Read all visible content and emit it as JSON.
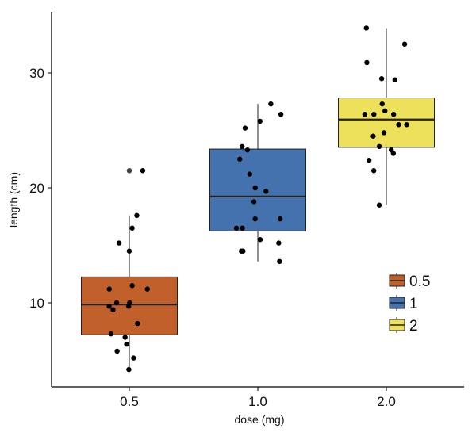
{
  "chart_data": {
    "type": "boxplot",
    "title": "",
    "xlabel": "dose (mg)",
    "ylabel": "length (cm)",
    "ylim": [
      2.7,
      35.7
    ],
    "yticks": [
      10,
      20,
      30
    ],
    "categories": [
      "0.5",
      "1.0",
      "2.0"
    ],
    "grid": false,
    "legend": {
      "position": "right",
      "entries": [
        "0.5",
        "1",
        "2"
      ]
    },
    "colors": [
      "#C2602B",
      "#4472AE",
      "#EDE05A"
    ],
    "boxes": [
      {
        "category": "0.5",
        "min": 4.2,
        "q1": 7.225,
        "median": 9.85,
        "q3": 12.25,
        "max": 17.6,
        "outliers": [
          21.5
        ]
      },
      {
        "category": "1.0",
        "min": 13.6,
        "q1": 16.25,
        "median": 19.25,
        "q3": 23.375,
        "max": 27.3,
        "outliers": []
      },
      {
        "category": "2.0",
        "min": 18.5,
        "q1": 23.525,
        "median": 25.95,
        "q3": 27.825,
        "max": 33.9,
        "outliers": []
      }
    ],
    "points": [
      [
        4.2,
        11.5,
        7.3,
        5.8,
        6.4,
        10.0,
        11.2,
        11.2,
        5.2,
        7.0,
        15.2,
        21.5,
        17.6,
        9.7,
        14.5,
        10.0,
        8.2,
        9.4,
        16.5,
        9.7
      ],
      [
        16.5,
        16.5,
        15.2,
        17.3,
        22.5,
        17.3,
        13.6,
        14.5,
        18.8,
        15.5,
        19.7,
        23.3,
        23.6,
        26.4,
        20.0,
        25.2,
        25.8,
        21.2,
        14.5,
        27.3
      ],
      [
        23.6,
        18.5,
        33.9,
        25.5,
        26.4,
        32.5,
        26.7,
        21.5,
        23.3,
        29.5,
        25.5,
        26.4,
        22.4,
        24.5,
        24.8,
        30.9,
        26.4,
        27.3,
        29.4,
        23.0
      ]
    ]
  }
}
